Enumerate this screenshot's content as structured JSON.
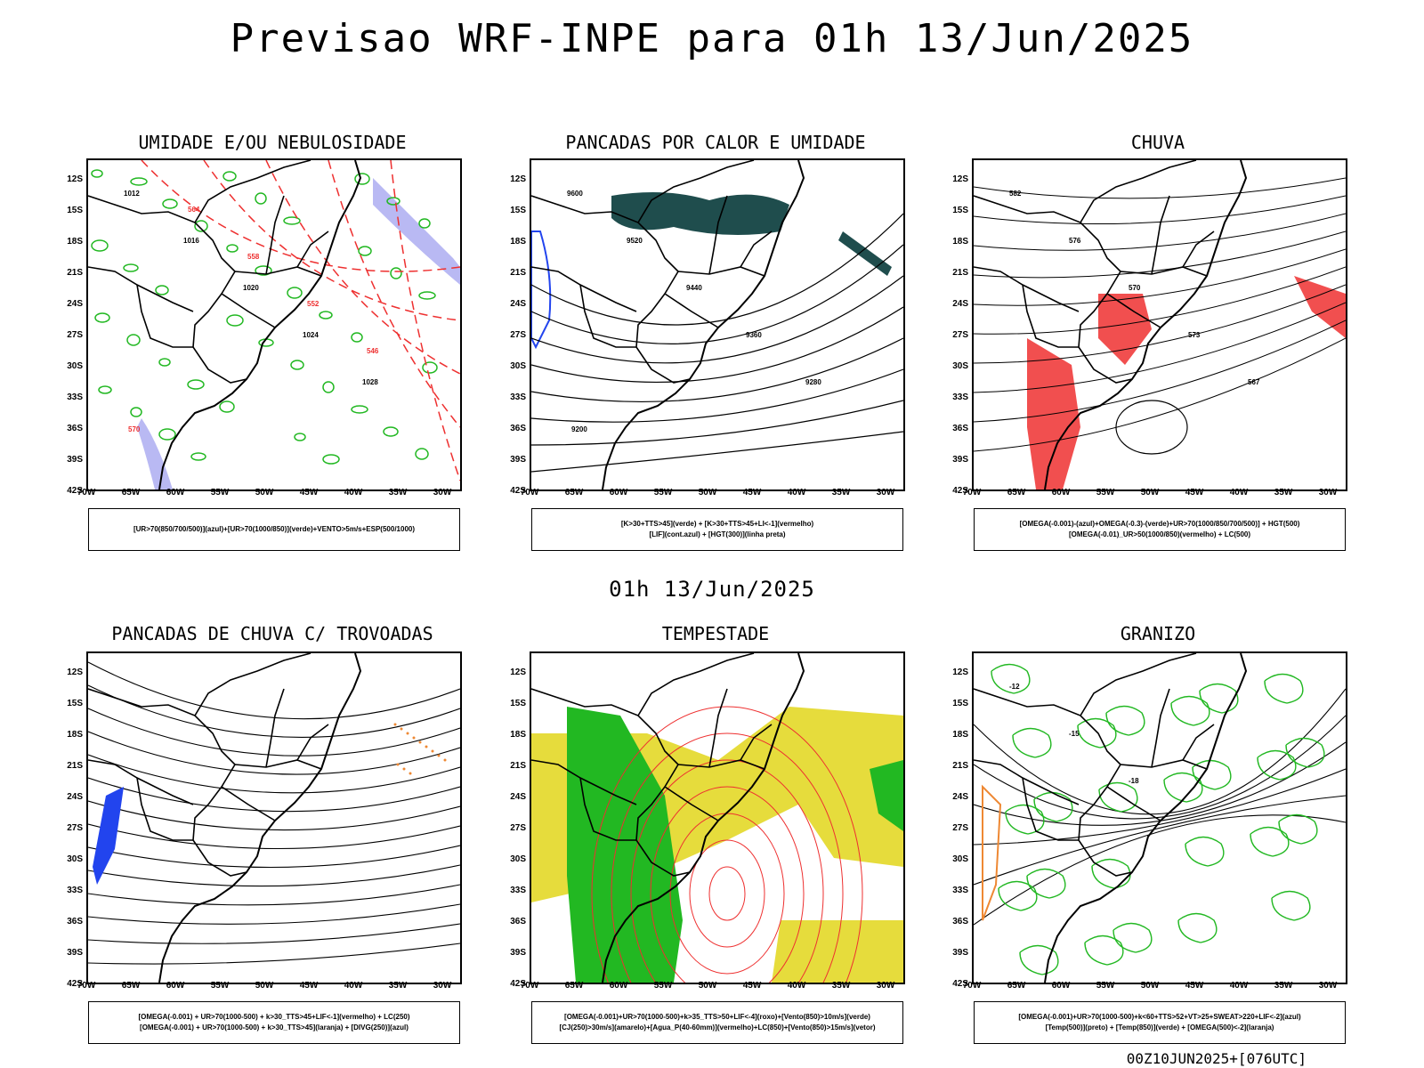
{
  "title": "Previsao WRF-INPE  para 01h 13/Jun/2025",
  "subtitle": "01h 13/Jun/2025",
  "footer": "00Z10JUN2025+[076UTC]",
  "axes": {
    "lat_ticks": [
      "12S",
      "15S",
      "18S",
      "21S",
      "24S",
      "27S",
      "30S",
      "33S",
      "36S",
      "39S",
      "42S"
    ],
    "lon_ticks": [
      "70W",
      "65W",
      "60W",
      "55W",
      "50W",
      "45W",
      "40W",
      "35W",
      "30W"
    ]
  },
  "colors": {
    "green": "#22b822",
    "red": "#ee3030",
    "blue": "#2244ee",
    "lavender": "#a8a8f0",
    "yellow": "#e6dc3c",
    "darkteal": "#1f4d4d",
    "orange": "#ee8833"
  },
  "panels": [
    {
      "title": "UMIDADE E/OU NEBULOSIDADE",
      "legend": [
        "[UR>70(850/700/500)](azul)+[UR>70(1000/850)](verde)+VENTO>5m/s+ESP(500/1000)"
      ],
      "labels": [
        "1012",
        "1016",
        "1020",
        "1024",
        "1028",
        "570",
        "564",
        "558",
        "552",
        "546"
      ]
    },
    {
      "title": "PANCADAS POR CALOR E UMIDADE",
      "legend": [
        "[K>30+TTS>45](verde)  +  [K>30+TTS>45+LI<-1](vermelho)",
        "[LIF](cont.azul)  +  [HGT(300)](linha preta)"
      ],
      "labels": [
        "9600",
        "9520",
        "9440",
        "9360",
        "9280",
        "9200"
      ]
    },
    {
      "title": "CHUVA",
      "legend": [
        "[OMEGA(-0.001)-(azul)+OMEGA(-0.3)-(verde)+UR>70(1000/850/700/500)]  +  HGT(500)",
        "[OMEGA(-0.01)_UR>50(1000/850)(vermelho)  +  LC(500)"
      ],
      "labels": [
        "582",
        "576",
        "570",
        "573",
        "567"
      ]
    },
    {
      "title": "PANCADAS DE CHUVA C/ TROVOADAS",
      "legend": [
        "[OMEGA(-0.001)  +  UR>70(1000-500)  +  k>30_TTS>45+LIF<-1](vermelho)  +  LC(250)",
        "[OMEGA(-0.001)  +  UR>70(1000-500)  +  k>30_TTS>45](laranja)  +  [DIVG(250)](azul)"
      ],
      "labels": []
    },
    {
      "title": "TEMPESTADE",
      "legend": [
        "[OMEGA(-0.001)+UR>70(1000-500)+k>35_TTS>50+LIF<-4](roxo)+[Vento(850)>10m/s](verde)",
        "[CJ(250)>30m/s](amarelo)+[Agua_P(40-60mm)](vermelho)+LC(850)+[Vento(850)>15m/s](vetor)"
      ],
      "labels": []
    },
    {
      "title": "GRANIZO",
      "legend": [
        "[OMEGA(-0.001)+UR>70(1000-500)+k<60+TTS>52+VT>25+SWEAT>220+LIF<-2](azul)",
        "[Temp(500)](preto)  +  [Temp(850)](verde)  +  [OMEGA(500)<-2](laranja)"
      ],
      "labels": [
        "-12",
        "-15",
        "-18"
      ]
    }
  ]
}
